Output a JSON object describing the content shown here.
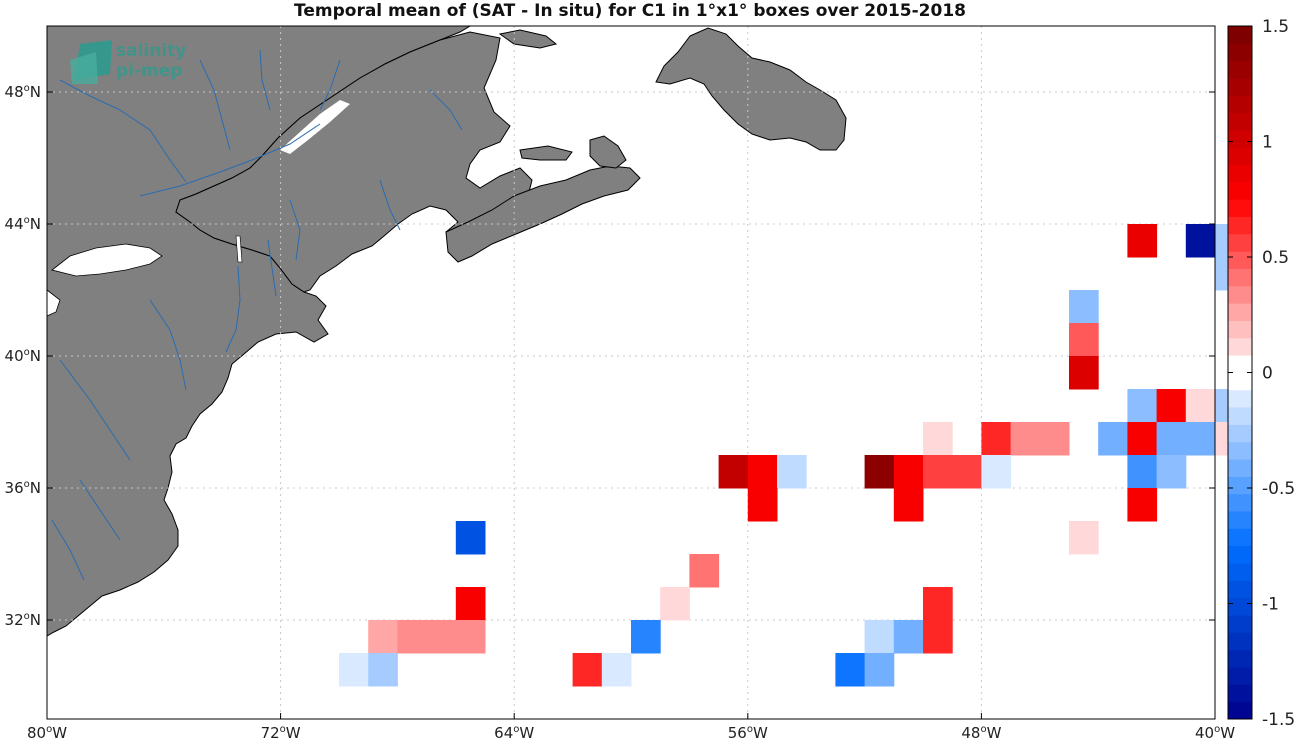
{
  "title": "Temporal mean of (SAT - In situ) for C1 in 1°x1° boxes over 2015-2018",
  "logo": {
    "line1": "salinity",
    "line2": "pi-mep",
    "color": "#2a9d8f"
  },
  "map": {
    "lon_range": [
      -80,
      -40
    ],
    "lat_range": [
      29,
      50
    ],
    "land_color": "#808080",
    "river_color": "#2b6cb0",
    "grid": "dotted",
    "lon_ticks": [
      {
        "value": -80,
        "num": "80",
        "dir": "W"
      },
      {
        "value": -72,
        "num": "72",
        "dir": "W"
      },
      {
        "value": -64,
        "num": "64",
        "dir": "W"
      },
      {
        "value": -56,
        "num": "56",
        "dir": "W"
      },
      {
        "value": -48,
        "num": "48",
        "dir": "W"
      },
      {
        "value": -40,
        "num": "40",
        "dir": "W"
      }
    ],
    "lat_ticks": [
      {
        "value": 48,
        "num": "48",
        "dir": "N"
      },
      {
        "value": 44,
        "num": "44",
        "dir": "N"
      },
      {
        "value": 40,
        "num": "40",
        "dir": "N"
      },
      {
        "value": 36,
        "num": "36",
        "dir": "N"
      },
      {
        "value": 32,
        "num": "32",
        "dir": "N"
      }
    ]
  },
  "colorbar": {
    "range": [
      -1.5,
      1.5
    ],
    "levels": 40,
    "ticks": [
      {
        "value": 1.5,
        "label": "1.5"
      },
      {
        "value": 1,
        "label": "1"
      },
      {
        "value": 0.5,
        "label": "0.5"
      },
      {
        "value": 0,
        "label": "0"
      },
      {
        "value": -0.5,
        "label": "-0.5"
      },
      {
        "value": -1,
        "label": "-1"
      },
      {
        "value": -1.5,
        "label": "-1.5"
      }
    ]
  },
  "chart_data": {
    "type": "heatmap",
    "title": "Temporal mean of (SAT - In situ) for C1 in 1°x1° boxes over 2015-2018",
    "x_range": [
      -80,
      -40
    ],
    "y_range": [
      29,
      50
    ],
    "cell_size_deg": 1,
    "cells": [
      {
        "lon": -42.5,
        "lat": 43.5,
        "value": 0.9
      },
      {
        "lon": -40.5,
        "lat": 43.5,
        "value": -1.4
      },
      {
        "lon": -39.5,
        "lat": 43.5,
        "value": -0.25
      },
      {
        "lon": -39.5,
        "lat": 42.5,
        "value": -0.25
      },
      {
        "lon": -44.5,
        "lat": 41.5,
        "value": -0.35
      },
      {
        "lon": -44.5,
        "lat": 40.5,
        "value": 0.45
      },
      {
        "lon": -44.5,
        "lat": 39.5,
        "value": 0.95
      },
      {
        "lon": -42.5,
        "lat": 38.5,
        "value": -0.35
      },
      {
        "lon": -41.5,
        "lat": 38.5,
        "value": 0.75
      },
      {
        "lon": -40.5,
        "lat": 38.5,
        "value": 0.15
      },
      {
        "lon": -39.5,
        "lat": 38.5,
        "value": -0.25
      },
      {
        "lon": -49.5,
        "lat": 37.5,
        "value": 0.15
      },
      {
        "lon": -47.5,
        "lat": 37.5,
        "value": 0.65
      },
      {
        "lon": -46.5,
        "lat": 37.5,
        "value": 0.3
      },
      {
        "lon": -45.5,
        "lat": 37.5,
        "value": 0.3
      },
      {
        "lon": -43.5,
        "lat": 37.5,
        "value": -0.4
      },
      {
        "lon": -42.5,
        "lat": 37.5,
        "value": 0.8
      },
      {
        "lon": -41.5,
        "lat": 37.5,
        "value": -0.45
      },
      {
        "lon": -40.5,
        "lat": 37.5,
        "value": -0.45
      },
      {
        "lon": -39.5,
        "lat": 37.5,
        "value": 0.15
      },
      {
        "lon": -56.5,
        "lat": 36.5,
        "value": 1.05
      },
      {
        "lon": -55.5,
        "lat": 36.5,
        "value": 0.8
      },
      {
        "lon": -54.5,
        "lat": 36.5,
        "value": -0.2
      },
      {
        "lon": -51.5,
        "lat": 36.5,
        "value": 1.4
      },
      {
        "lon": -50.5,
        "lat": 36.5,
        "value": 0.8
      },
      {
        "lon": -49.5,
        "lat": 36.5,
        "value": 0.55
      },
      {
        "lon": -48.5,
        "lat": 36.5,
        "value": 0.55
      },
      {
        "lon": -47.5,
        "lat": 36.5,
        "value": -0.1
      },
      {
        "lon": -42.5,
        "lat": 36.5,
        "value": -0.55
      },
      {
        "lon": -41.5,
        "lat": 36.5,
        "value": -0.35
      },
      {
        "lon": -55.5,
        "lat": 35.5,
        "value": 0.8
      },
      {
        "lon": -50.5,
        "lat": 35.5,
        "value": 0.8
      },
      {
        "lon": -42.5,
        "lat": 35.5,
        "value": 0.8
      },
      {
        "lon": -65.5,
        "lat": 34.5,
        "value": -0.95
      },
      {
        "lon": -44.5,
        "lat": 34.5,
        "value": 0.15
      },
      {
        "lon": -57.5,
        "lat": 33.5,
        "value": 0.4
      },
      {
        "lon": -58.5,
        "lat": 32.5,
        "value": 0.15
      },
      {
        "lon": -65.5,
        "lat": 32.5,
        "value": 0.8
      },
      {
        "lon": -49.5,
        "lat": 32.5,
        "value": 0.6
      },
      {
        "lon": -68.5,
        "lat": 31.5,
        "value": 0.25
      },
      {
        "lon": -67.5,
        "lat": 31.5,
        "value": 0.3
      },
      {
        "lon": -66.5,
        "lat": 31.5,
        "value": 0.3
      },
      {
        "lon": -65.5,
        "lat": 31.5,
        "value": 0.3
      },
      {
        "lon": -59.5,
        "lat": 31.5,
        "value": -0.65
      },
      {
        "lon": -51.5,
        "lat": 31.5,
        "value": -0.2
      },
      {
        "lon": -50.5,
        "lat": 31.5,
        "value": -0.45
      },
      {
        "lon": -49.5,
        "lat": 31.5,
        "value": 0.6
      },
      {
        "lon": -69.5,
        "lat": 30.5,
        "value": -0.1
      },
      {
        "lon": -68.5,
        "lat": 30.5,
        "value": -0.25
      },
      {
        "lon": -61.5,
        "lat": 30.5,
        "value": 0.6
      },
      {
        "lon": -60.5,
        "lat": 30.5,
        "value": -0.1
      },
      {
        "lon": -52.5,
        "lat": 30.5,
        "value": -0.75
      },
      {
        "lon": -51.5,
        "lat": 30.5,
        "value": -0.4
      }
    ],
    "colorbar_range": [
      -1.5,
      1.5
    ],
    "grid": true
  }
}
